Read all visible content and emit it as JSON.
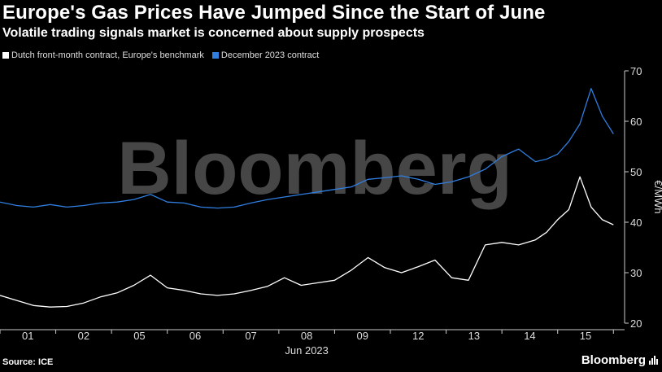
{
  "title": "Europe's Gas Prices Have Jumped Since the Start of June",
  "subtitle": "Volatile trading signals market is concerned about supply prospects",
  "source": "Source: ICE",
  "brand": "Bloomberg",
  "watermark": "Bloomberg",
  "colors": {
    "series_white": "#ffffff",
    "series_blue": "#2f7ee0",
    "background": "#000000",
    "axis": "#cccccc"
  },
  "chart_data": {
    "type": "line",
    "title": "Europe's Gas Prices Have Jumped Since the Start of June",
    "subtitle": "Volatile trading signals market is concerned about supply prospects",
    "xlabel": "Jun 2023",
    "ylabel": "€/MWh",
    "ylim": [
      20,
      70
    ],
    "yticks": [
      20,
      30,
      40,
      50,
      60,
      70
    ],
    "x_tick_labels": [
      "01",
      "02",
      "05",
      "06",
      "07",
      "08",
      "09",
      "12",
      "13",
      "14",
      "15"
    ],
    "x_range": [
      0,
      11.2
    ],
    "legend_position": "top-left",
    "grid": false,
    "series": [
      {
        "name": "Dutch front-month contract, Europe's benchmark",
        "color": "#ffffff",
        "x": [
          0,
          0.3,
          0.6,
          0.9,
          1.2,
          1.5,
          1.8,
          2.1,
          2.4,
          2.7,
          3.0,
          3.3,
          3.6,
          3.9,
          4.2,
          4.5,
          4.8,
          5.1,
          5.4,
          5.7,
          6.0,
          6.3,
          6.6,
          6.9,
          7.2,
          7.5,
          7.8,
          8.1,
          8.4,
          8.7,
          9.0,
          9.3,
          9.6,
          9.8,
          10.0,
          10.2,
          10.4,
          10.6,
          10.8,
          11.0
        ],
        "values": [
          25.5,
          24.5,
          23.5,
          23.2,
          23.3,
          24.0,
          25.2,
          26.0,
          27.5,
          29.5,
          27.0,
          26.5,
          25.8,
          25.5,
          25.8,
          26.5,
          27.3,
          29.0,
          27.5,
          28.0,
          28.5,
          30.5,
          33.0,
          31.0,
          30.0,
          31.2,
          32.5,
          29.0,
          28.5,
          35.5,
          36.0,
          35.5,
          36.5,
          38.0,
          40.5,
          42.5,
          49.0,
          43.0,
          40.5,
          39.5
        ]
      },
      {
        "name": "December 2023 contract",
        "color": "#2f7ee0",
        "x": [
          0,
          0.3,
          0.6,
          0.9,
          1.2,
          1.5,
          1.8,
          2.1,
          2.4,
          2.7,
          3.0,
          3.3,
          3.6,
          3.9,
          4.2,
          4.5,
          4.8,
          5.1,
          5.4,
          5.7,
          6.0,
          6.3,
          6.6,
          6.9,
          7.2,
          7.5,
          7.8,
          8.1,
          8.4,
          8.7,
          9.0,
          9.3,
          9.6,
          9.8,
          10.0,
          10.2,
          10.4,
          10.6,
          10.8,
          11.0
        ],
        "values": [
          44.0,
          43.3,
          43.0,
          43.5,
          43.0,
          43.3,
          43.8,
          44.0,
          44.5,
          45.5,
          44.0,
          43.8,
          43.0,
          42.8,
          43.0,
          43.8,
          44.5,
          45.0,
          45.5,
          46.0,
          46.5,
          47.0,
          48.5,
          48.8,
          49.2,
          48.5,
          47.5,
          48.0,
          49.0,
          50.5,
          53.0,
          54.5,
          52.0,
          52.5,
          53.5,
          56.0,
          59.5,
          66.5,
          61.0,
          57.5
        ]
      }
    ]
  }
}
